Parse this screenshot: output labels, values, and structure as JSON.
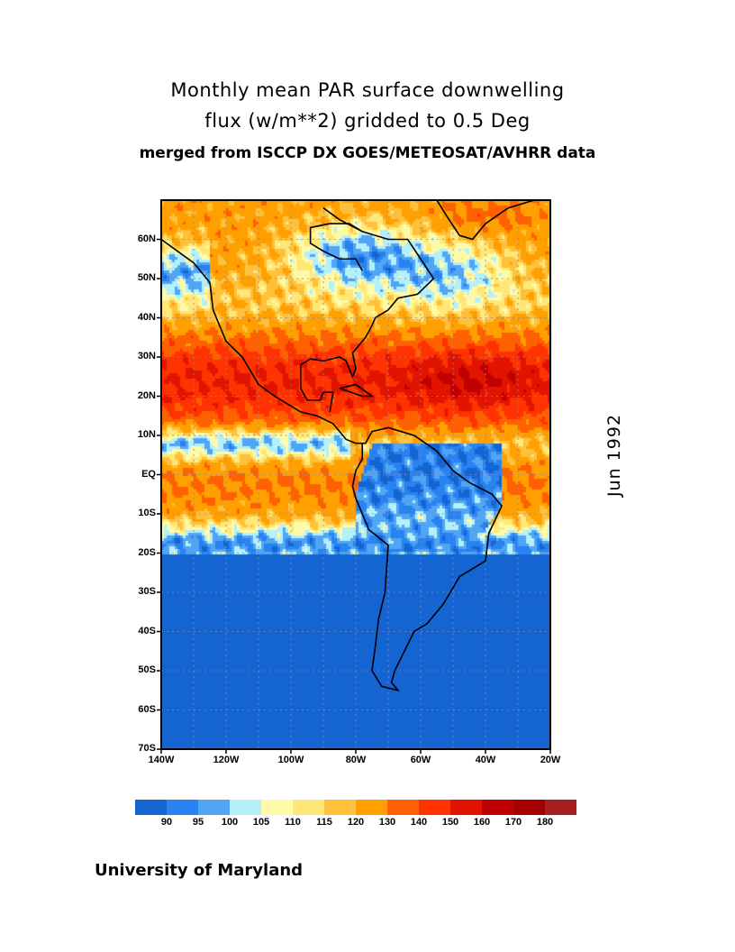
{
  "title": {
    "line1": "Monthly mean PAR surface downwelling",
    "line2": "flux (w/m**2) gridded to 0.5 Deg",
    "line3": "merged from ISCCP DX GOES/METEOSAT/AVHRR data"
  },
  "date_label": "Jun 1992",
  "credit": "University of Maryland",
  "map": {
    "type": "heatmap",
    "lon_range": [
      -140,
      -20
    ],
    "lat_range": [
      -70,
      70
    ],
    "grid": true,
    "lat_ticks": [
      "60N",
      "50N",
      "40N",
      "30N",
      "20N",
      "10N",
      "EQ",
      "10S",
      "20S",
      "30S",
      "40S",
      "50S",
      "60S",
      "70S"
    ],
    "lat_values": [
      60,
      50,
      40,
      30,
      20,
      10,
      0,
      -10,
      -20,
      -30,
      -40,
      -50,
      -60,
      -70
    ],
    "lon_ticks": [
      "140W",
      "120W",
      "100W",
      "80W",
      "60W",
      "40W",
      "20W"
    ],
    "lon_values": [
      -140,
      -120,
      -100,
      -80,
      -60,
      -40,
      -20
    ]
  },
  "colorbar": {
    "labels": [
      "90",
      "95",
      "100",
      "105",
      "110",
      "115",
      "120",
      "130",
      "140",
      "150",
      "160",
      "170",
      "180"
    ],
    "levels": [
      90,
      95,
      100,
      105,
      110,
      115,
      120,
      130,
      140,
      150,
      160,
      170,
      180
    ],
    "colors": [
      "#1464d2",
      "#2882f0",
      "#50a5f5",
      "#b4f0fa",
      "#fffaaa",
      "#ffe878",
      "#ffc03c",
      "#ffa000",
      "#ff6000",
      "#ff3200",
      "#e11400",
      "#c00000",
      "#a50000",
      "#a52020"
    ]
  }
}
